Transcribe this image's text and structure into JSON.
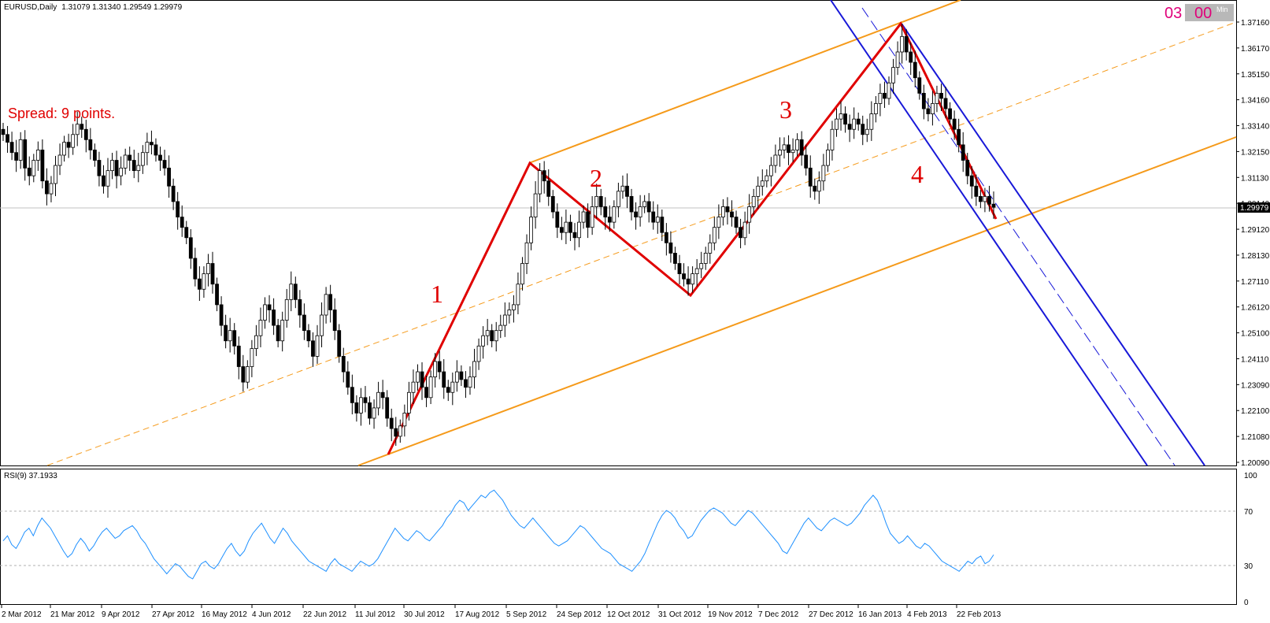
{
  "chart_data": {
    "type": "candlestick",
    "title": "EURUSD,Daily",
    "header_values": "1.31079 1.31340 1.29549 1.29979",
    "last_price": "1.29979",
    "spread_text": "Spread: 9 points.",
    "timer": {
      "left": "03",
      "right": "00",
      "mode": "Min"
    },
    "y_ticks": [
      "1.37160",
      "1.36170",
      "1.35150",
      "1.34160",
      "1.33140",
      "1.32150",
      "1.31130",
      "1.30140",
      "1.29120",
      "1.28130",
      "1.27110",
      "1.26120",
      "1.25100",
      "1.24110",
      "1.23090",
      "1.22100",
      "1.21080",
      "1.20090"
    ],
    "y_range": [
      1.2009,
      1.3716
    ],
    "x_ticks": [
      "2 Mar 2012",
      "21 Mar 2012",
      "9 Apr 2012",
      "27 Apr 2012",
      "16 May 2012",
      "4 Jun 2012",
      "22 Jun 2012",
      "11 Jul 2012",
      "30 Jul 2012",
      "17 Aug 2012",
      "5 Sep 2012",
      "24 Sep 2012",
      "12 Oct 2012",
      "31 Oct 2012",
      "19 Nov 2012",
      "7 Dec 2012",
      "27 Dec 2012",
      "16 Jan 2013",
      "4 Feb 2013",
      "22 Feb 2013"
    ],
    "series": [
      {
        "values": [
          1.328,
          1.325,
          1.321,
          1.318,
          1.326,
          1.315,
          1.312,
          1.318,
          1.322,
          1.31,
          1.305,
          1.309,
          1.316,
          1.32,
          1.325,
          1.323,
          1.328,
          1.332,
          1.33,
          1.326,
          1.322,
          1.318,
          1.312,
          1.308,
          1.314,
          1.318,
          1.312,
          1.315,
          1.32,
          1.318,
          1.314,
          1.316,
          1.321,
          1.325,
          1.324,
          1.32,
          1.318,
          1.315,
          1.308,
          1.302,
          1.296,
          1.292,
          1.288,
          1.28,
          1.272,
          1.268,
          1.274,
          1.278,
          1.27,
          1.262,
          1.254,
          1.248,
          1.252,
          1.246,
          1.238,
          1.232,
          1.238,
          1.245,
          1.25,
          1.256,
          1.262,
          1.26,
          1.254,
          1.248,
          1.256,
          1.264,
          1.27,
          1.264,
          1.258,
          1.252,
          1.248,
          1.242,
          1.25,
          1.258,
          1.266,
          1.26,
          1.252,
          1.242,
          1.236,
          1.23,
          1.224,
          1.22,
          1.226,
          1.224,
          1.218,
          1.222,
          1.228,
          1.226,
          1.218,
          1.214,
          1.211,
          1.215,
          1.22,
          1.228,
          1.232,
          1.236,
          1.23,
          1.226,
          1.234,
          1.24,
          1.236,
          1.23,
          1.228,
          1.232,
          1.236,
          1.233,
          1.23,
          1.234,
          1.24,
          1.246,
          1.25,
          1.252,
          1.248,
          1.252,
          1.254,
          1.258,
          1.26,
          1.262,
          1.27,
          1.278,
          1.286,
          1.296,
          1.305,
          1.314,
          1.31,
          1.304,
          1.298,
          1.292,
          1.29,
          1.294,
          1.29,
          1.288,
          1.294,
          1.298,
          1.292,
          1.3,
          1.304,
          1.3,
          1.296,
          1.294,
          1.3,
          1.306,
          1.308,
          1.304,
          1.298,
          1.296,
          1.3,
          1.302,
          1.298,
          1.294,
          1.296,
          1.29,
          1.286,
          1.282,
          1.278,
          1.274,
          1.272,
          1.27,
          1.274,
          1.276,
          1.278,
          1.282,
          1.286,
          1.292,
          1.296,
          1.3,
          1.298,
          1.296,
          1.292,
          1.288,
          1.294,
          1.3,
          1.304,
          1.308,
          1.31,
          1.312,
          1.316,
          1.32,
          1.322,
          1.324,
          1.321,
          1.322,
          1.326,
          1.32,
          1.315,
          1.308,
          1.306,
          1.31,
          1.316,
          1.322,
          1.33,
          1.334,
          1.336,
          1.332,
          1.33,
          1.334,
          1.332,
          1.328,
          1.33,
          1.336,
          1.34,
          1.344,
          1.342,
          1.348,
          1.354,
          1.36,
          1.366,
          1.36,
          1.356,
          1.35,
          1.344,
          1.338,
          1.336,
          1.34,
          1.344,
          1.342,
          1.338,
          1.334,
          1.33,
          1.324,
          1.318,
          1.312,
          1.308,
          1.304,
          1.302,
          1.304,
          1.301,
          1.2998
        ]
      }
    ],
    "wave_labels": [
      "1",
      "2",
      "3",
      "4"
    ],
    "rsi": {
      "label": "RSI(9) 37.1933",
      "levels": [
        "100",
        "70",
        "30",
        "0"
      ],
      "values": [
        48,
        52,
        45,
        42,
        48,
        55,
        58,
        52,
        60,
        66,
        62,
        58,
        52,
        46,
        40,
        35,
        38,
        45,
        50,
        46,
        40,
        44,
        50,
        55,
        58,
        54,
        50,
        52,
        56,
        58,
        60,
        56,
        50,
        46,
        40,
        34,
        30,
        26,
        22,
        26,
        30,
        28,
        24,
        20,
        18,
        24,
        30,
        32,
        28,
        26,
        30,
        36,
        42,
        46,
        40,
        36,
        40,
        48,
        54,
        58,
        62,
        56,
        50,
        46,
        52,
        58,
        54,
        48,
        44,
        40,
        36,
        32,
        30,
        28,
        26,
        24,
        30,
        34,
        30,
        28,
        26,
        24,
        28,
        32,
        30,
        28,
        30,
        34,
        40,
        46,
        52,
        58,
        54,
        50,
        48,
        52,
        56,
        54,
        50,
        48,
        52,
        56,
        60,
        66,
        70,
        76,
        80,
        78,
        72,
        76,
        80,
        84,
        82,
        86,
        88,
        84,
        80,
        74,
        68,
        64,
        60,
        58,
        62,
        66,
        62,
        58,
        54,
        50,
        46,
        44,
        46,
        48,
        52,
        56,
        60,
        58,
        54,
        50,
        46,
        42,
        40,
        38,
        34,
        30,
        28,
        26,
        24,
        28,
        32,
        38,
        46,
        54,
        62,
        68,
        72,
        70,
        66,
        60,
        56,
        50,
        52,
        58,
        64,
        68,
        72,
        74,
        72,
        70,
        66,
        62,
        60,
        64,
        68,
        72,
        70,
        66,
        62,
        58,
        54,
        50,
        46,
        40,
        38,
        44,
        50,
        56,
        62,
        66,
        62,
        58,
        56,
        60,
        64,
        66,
        64,
        62,
        60,
        62,
        66,
        70,
        76,
        80,
        84,
        80,
        72,
        62,
        54,
        50,
        46,
        48,
        52,
        48,
        44,
        42,
        46,
        44,
        40,
        36,
        32,
        30,
        28,
        26,
        24,
        28,
        32,
        30,
        34,
        36,
        30,
        32,
        37
      ]
    }
  }
}
